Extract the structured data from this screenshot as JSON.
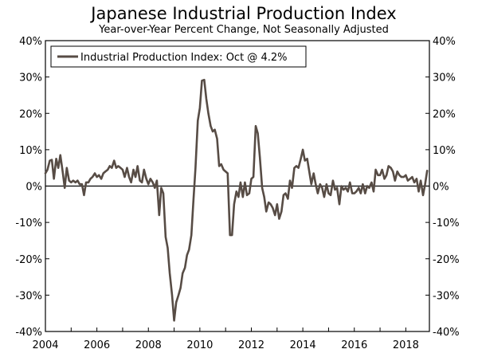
{
  "chart_data": {
    "type": "line",
    "title": "Japanese Industrial Production Index",
    "subtitle": "Year-over-Year Percent Change, Not Seasonally Adjusted",
    "legend": {
      "label": "Industrial Production Index: Oct @ 4.2%",
      "placement": "top-left"
    },
    "ylim": [
      -40,
      40
    ],
    "yticks": [
      -40,
      -30,
      -20,
      -10,
      0,
      10,
      20,
      30,
      40
    ],
    "ytick_labels": [
      "-40%",
      "-30%",
      "-20%",
      "-10%",
      "0%",
      "10%",
      "20%",
      "30%",
      "40%"
    ],
    "xlim": [
      2004.0,
      2018.917
    ],
    "xticks": [
      2004,
      2006,
      2008,
      2010,
      2012,
      2014,
      2016,
      2018
    ],
    "xtick_labels": [
      "2004",
      "2006",
      "2008",
      "2010",
      "2012",
      "2014",
      "2016",
      "2018"
    ],
    "zero_line": true,
    "grid": false,
    "series": [
      {
        "name": "Industrial Production Index",
        "color": "#574c45",
        "points": [
          [
            2004.0,
            3.5
          ],
          [
            2004.08,
            4.5
          ],
          [
            2004.17,
            7.0
          ],
          [
            2004.25,
            7.2
          ],
          [
            2004.33,
            2.0
          ],
          [
            2004.42,
            7.5
          ],
          [
            2004.5,
            5.0
          ],
          [
            2004.58,
            8.5
          ],
          [
            2004.67,
            4.0
          ],
          [
            2004.75,
            -0.5
          ],
          [
            2004.83,
            5.0
          ],
          [
            2004.92,
            1.5
          ],
          [
            2005.0,
            1.0
          ],
          [
            2005.08,
            1.5
          ],
          [
            2005.17,
            1.0
          ],
          [
            2005.25,
            1.5
          ],
          [
            2005.33,
            0.5
          ],
          [
            2005.42,
            0.5
          ],
          [
            2005.5,
            -2.5
          ],
          [
            2005.58,
            1.0
          ],
          [
            2005.67,
            1.0
          ],
          [
            2005.75,
            2.0
          ],
          [
            2005.83,
            2.5
          ],
          [
            2005.92,
            3.5
          ],
          [
            2006.0,
            2.5
          ],
          [
            2006.08,
            3.0
          ],
          [
            2006.17,
            2.0
          ],
          [
            2006.25,
            3.5
          ],
          [
            2006.33,
            4.0
          ],
          [
            2006.42,
            4.5
          ],
          [
            2006.5,
            5.5
          ],
          [
            2006.58,
            5.0
          ],
          [
            2006.67,
            7.0
          ],
          [
            2006.75,
            5.0
          ],
          [
            2006.83,
            5.5
          ],
          [
            2006.92,
            5.0
          ],
          [
            2007.0,
            4.5
          ],
          [
            2007.08,
            2.5
          ],
          [
            2007.17,
            5.0
          ],
          [
            2007.25,
            2.5
          ],
          [
            2007.33,
            1.0
          ],
          [
            2007.42,
            4.5
          ],
          [
            2007.5,
            2.5
          ],
          [
            2007.58,
            5.5
          ],
          [
            2007.67,
            1.5
          ],
          [
            2007.75,
            1.0
          ],
          [
            2007.83,
            4.5
          ],
          [
            2007.92,
            2.0
          ],
          [
            2008.0,
            0.5
          ],
          [
            2008.08,
            2.0
          ],
          [
            2008.17,
            1.0
          ],
          [
            2008.25,
            -0.5
          ],
          [
            2008.33,
            1.5
          ],
          [
            2008.42,
            -8.0
          ],
          [
            2008.5,
            -0.5
          ],
          [
            2008.58,
            -2.0
          ],
          [
            2008.67,
            -14.0
          ],
          [
            2008.75,
            -17.0
          ],
          [
            2008.83,
            -24.0
          ],
          [
            2008.92,
            -30.0
          ],
          [
            2009.0,
            -37.0
          ],
          [
            2009.08,
            -32.0
          ],
          [
            2009.17,
            -30.0
          ],
          [
            2009.25,
            -28.0
          ],
          [
            2009.33,
            -24.0
          ],
          [
            2009.42,
            -22.5
          ],
          [
            2009.5,
            -19.0
          ],
          [
            2009.58,
            -17.5
          ],
          [
            2009.67,
            -13.5
          ],
          [
            2009.75,
            -4.0
          ],
          [
            2009.83,
            5.0
          ],
          [
            2009.92,
            18.0
          ],
          [
            2010.0,
            21.5
          ],
          [
            2010.08,
            29.0
          ],
          [
            2010.17,
            29.2
          ],
          [
            2010.25,
            24.0
          ],
          [
            2010.33,
            20.0
          ],
          [
            2010.42,
            16.5
          ],
          [
            2010.5,
            15.0
          ],
          [
            2010.58,
            15.5
          ],
          [
            2010.67,
            13.0
          ],
          [
            2010.75,
            5.5
          ],
          [
            2010.83,
            6.0
          ],
          [
            2010.92,
            4.5
          ],
          [
            2011.0,
            4.0
          ],
          [
            2011.08,
            3.5
          ],
          [
            2011.17,
            -13.5
          ],
          [
            2011.25,
            -13.5
          ],
          [
            2011.33,
            -5.0
          ],
          [
            2011.42,
            -1.5
          ],
          [
            2011.5,
            -3.0
          ],
          [
            2011.58,
            1.0
          ],
          [
            2011.67,
            -3.0
          ],
          [
            2011.75,
            1.0
          ],
          [
            2011.83,
            -2.5
          ],
          [
            2011.92,
            -2.0
          ],
          [
            2012.0,
            2.0
          ],
          [
            2012.08,
            2.5
          ],
          [
            2012.17,
            16.5
          ],
          [
            2012.25,
            14.5
          ],
          [
            2012.33,
            8.0
          ],
          [
            2012.42,
            -0.5
          ],
          [
            2012.5,
            -3.0
          ],
          [
            2012.58,
            -7.0
          ],
          [
            2012.67,
            -4.5
          ],
          [
            2012.75,
            -5.0
          ],
          [
            2012.83,
            -6.0
          ],
          [
            2012.92,
            -8.0
          ],
          [
            2013.0,
            -5.0
          ],
          [
            2013.08,
            -9.0
          ],
          [
            2013.17,
            -7.0
          ],
          [
            2013.25,
            -2.5
          ],
          [
            2013.33,
            -2.0
          ],
          [
            2013.42,
            -3.5
          ],
          [
            2013.5,
            1.5
          ],
          [
            2013.58,
            -0.5
          ],
          [
            2013.67,
            5.0
          ],
          [
            2013.75,
            5.5
          ],
          [
            2013.83,
            5.0
          ],
          [
            2013.92,
            7.5
          ],
          [
            2014.0,
            10.0
          ],
          [
            2014.08,
            7.0
          ],
          [
            2014.17,
            7.5
          ],
          [
            2014.25,
            4.0
          ],
          [
            2014.33,
            0.5
          ],
          [
            2014.42,
            3.5
          ],
          [
            2014.5,
            0.5
          ],
          [
            2014.58,
            -2.0
          ],
          [
            2014.67,
            0.5
          ],
          [
            2014.75,
            -0.5
          ],
          [
            2014.83,
            -3.0
          ],
          [
            2014.92,
            0.5
          ],
          [
            2015.0,
            -2.0
          ],
          [
            2015.08,
            -2.5
          ],
          [
            2015.17,
            1.5
          ],
          [
            2015.25,
            -1.0
          ],
          [
            2015.33,
            -0.5
          ],
          [
            2015.42,
            -5.0
          ],
          [
            2015.5,
            0.0
          ],
          [
            2015.58,
            -1.0
          ],
          [
            2015.67,
            -0.5
          ],
          [
            2015.75,
            -1.5
          ],
          [
            2015.83,
            1.0
          ],
          [
            2015.92,
            -2.0
          ],
          [
            2016.0,
            -2.0
          ],
          [
            2016.08,
            -1.5
          ],
          [
            2016.17,
            -0.5
          ],
          [
            2016.25,
            -2.0
          ],
          [
            2016.33,
            0.5
          ],
          [
            2016.42,
            -2.0
          ],
          [
            2016.5,
            0.0
          ],
          [
            2016.58,
            -0.5
          ],
          [
            2016.67,
            1.0
          ],
          [
            2016.75,
            -1.5
          ],
          [
            2016.83,
            4.5
          ],
          [
            2016.92,
            3.0
          ],
          [
            2017.0,
            3.0
          ],
          [
            2017.08,
            4.5
          ],
          [
            2017.17,
            2.0
          ],
          [
            2017.25,
            3.0
          ],
          [
            2017.33,
            5.5
          ],
          [
            2017.42,
            5.0
          ],
          [
            2017.5,
            4.0
          ],
          [
            2017.58,
            1.5
          ],
          [
            2017.67,
            4.0
          ],
          [
            2017.75,
            3.0
          ],
          [
            2017.83,
            2.5
          ],
          [
            2017.92,
            2.5
          ],
          [
            2018.0,
            3.0
          ],
          [
            2018.08,
            1.5
          ],
          [
            2018.17,
            2.0
          ],
          [
            2018.25,
            2.5
          ],
          [
            2018.33,
            1.0
          ],
          [
            2018.42,
            2.0
          ],
          [
            2018.5,
            -1.5
          ],
          [
            2018.58,
            1.5
          ],
          [
            2018.67,
            -2.5
          ],
          [
            2018.75,
            0.5
          ],
          [
            2018.83,
            4.2
          ]
        ]
      }
    ]
  }
}
